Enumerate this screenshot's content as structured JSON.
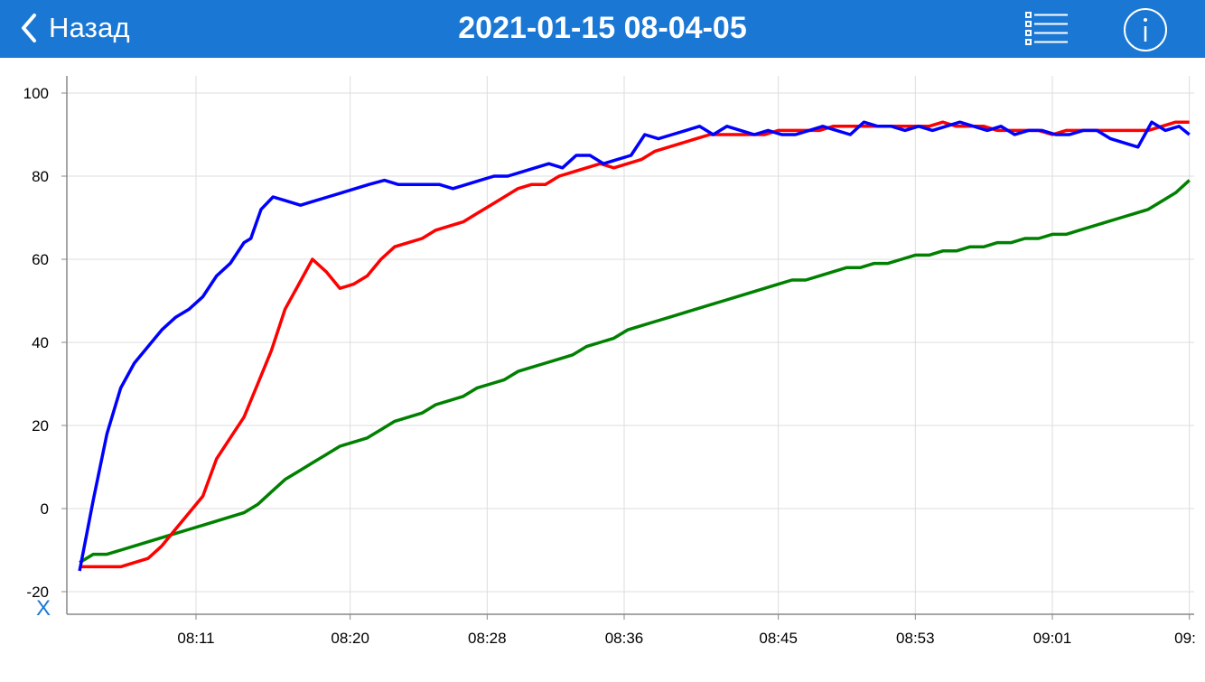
{
  "header": {
    "back_label": "Назад",
    "title": "2021-01-15 08-04-05",
    "back_icon": "chevron-left-icon",
    "list_icon": "list-icon",
    "info_icon": "info-icon",
    "bar_color": "#1a78d4"
  },
  "x_marker": "X",
  "chart_data": {
    "type": "line",
    "title": "",
    "xlabel": "",
    "ylabel": "",
    "x_ticks": [
      "08:11",
      "08:20",
      "08:28",
      "08:36",
      "08:45",
      "08:53",
      "09:01",
      "09:"
    ],
    "x_tick_minutes": [
      11,
      20,
      28,
      36,
      45,
      53,
      61,
      69
    ],
    "x_range_minutes": [
      4,
      69
    ],
    "ylim": [
      -20,
      100
    ],
    "y_ticks": [
      -20,
      0,
      20,
      40,
      60,
      80,
      100
    ],
    "grid": true,
    "legend": "none",
    "series": [
      {
        "color": "#0000ff",
        "x": [
          4.2,
          5.0,
          5.8,
          6.6,
          7.4,
          8.2,
          9.0,
          9.8,
          10.6,
          11.4,
          12.2,
          13.0,
          13.8,
          14.2,
          14.8,
          15.5,
          16.3,
          17.1,
          17.9,
          18.7,
          19.5,
          20.3,
          21.1,
          22.0,
          22.8,
          23.6,
          24.4,
          25.2,
          26.0,
          26.8,
          27.6,
          28.4,
          29.2,
          30.0,
          30.8,
          31.6,
          32.4,
          33.2,
          34.0,
          34.8,
          35.6,
          36.4,
          37.2,
          38.0,
          38.8,
          39.6,
          40.4,
          41.2,
          42.0,
          42.8,
          43.6,
          44.4,
          45.2,
          46.0,
          46.8,
          47.6,
          48.4,
          49.2,
          50.0,
          50.8,
          51.6,
          52.4,
          53.2,
          54.0,
          54.8,
          55.6,
          56.4,
          57.2,
          58.0,
          58.8,
          59.6,
          60.4,
          61.2,
          62.0,
          62.8,
          63.6,
          64.4,
          65.2,
          66.0,
          66.8,
          67.6,
          68.4,
          69.0
        ],
        "y": [
          -15,
          2,
          18,
          29,
          35,
          39,
          43,
          46,
          48,
          51,
          56,
          59,
          64,
          65,
          72,
          75,
          74,
          73,
          74,
          75,
          76,
          77,
          78,
          79,
          78,
          78,
          78,
          78,
          77,
          78,
          79,
          80,
          80,
          81,
          82,
          83,
          82,
          85,
          85,
          83,
          84,
          85,
          90,
          89,
          90,
          91,
          92,
          90,
          92,
          91,
          90,
          91,
          90,
          90,
          91,
          92,
          91,
          90,
          93,
          92,
          92,
          91,
          92,
          91,
          92,
          93,
          92,
          91,
          92,
          90,
          91,
          91,
          90,
          90,
          91,
          91,
          89,
          88,
          87,
          93,
          91,
          92,
          90
        ]
      },
      {
        "color": "#ff0000",
        "x": [
          4.2,
          5.0,
          5.8,
          6.6,
          7.4,
          8.2,
          9.0,
          9.8,
          10.6,
          11.4,
          12.2,
          13.0,
          13.8,
          14.6,
          15.4,
          16.2,
          17.0,
          17.8,
          18.6,
          19.4,
          20.2,
          21.0,
          21.8,
          22.6,
          23.4,
          24.2,
          25.0,
          25.8,
          26.6,
          27.4,
          28.2,
          29.0,
          29.8,
          30.6,
          31.4,
          32.2,
          33.0,
          33.8,
          34.6,
          35.4,
          36.2,
          37.0,
          37.8,
          38.6,
          39.4,
          40.2,
          41.0,
          41.8,
          42.6,
          43.4,
          44.2,
          45.0,
          45.8,
          46.6,
          47.4,
          48.2,
          49.0,
          49.8,
          50.6,
          51.4,
          52.2,
          53.0,
          53.8,
          54.6,
          55.4,
          56.2,
          57.0,
          57.8,
          58.6,
          59.4,
          60.2,
          61.0,
          61.8,
          62.6,
          63.4,
          64.2,
          65.0,
          65.8,
          66.6,
          67.4,
          68.2,
          69.0
        ],
        "y": [
          -14,
          -14,
          -14,
          -14,
          -13,
          -12,
          -9,
          -5,
          -1,
          3,
          12,
          17,
          22,
          30,
          38,
          48,
          54,
          60,
          57,
          53,
          54,
          56,
          60,
          63,
          64,
          65,
          67,
          68,
          69,
          71,
          73,
          75,
          77,
          78,
          78,
          80,
          81,
          82,
          83,
          82,
          83,
          84,
          86,
          87,
          88,
          89,
          90,
          90,
          90,
          90,
          90,
          91,
          91,
          91,
          91,
          92,
          92,
          92,
          92,
          92,
          92,
          92,
          92,
          93,
          92,
          92,
          92,
          91,
          91,
          91,
          91,
          90,
          91,
          91,
          91,
          91,
          91,
          91,
          91,
          92,
          93,
          93
        ]
      },
      {
        "color": "#008000",
        "x": [
          4.2,
          5.0,
          5.8,
          6.6,
          7.4,
          8.2,
          9.0,
          9.8,
          10.6,
          11.4,
          12.2,
          13.0,
          13.8,
          14.6,
          15.4,
          16.2,
          17.0,
          17.8,
          18.6,
          19.4,
          20.2,
          21.0,
          21.8,
          22.6,
          23.4,
          24.2,
          25.0,
          25.8,
          26.6,
          27.4,
          28.2,
          29.0,
          29.8,
          30.6,
          31.4,
          32.2,
          33.0,
          33.8,
          34.6,
          35.4,
          36.2,
          37.0,
          37.8,
          38.6,
          39.4,
          40.2,
          41.0,
          41.8,
          42.6,
          43.4,
          44.2,
          45.0,
          45.8,
          46.6,
          47.4,
          48.2,
          49.0,
          49.8,
          50.6,
          51.4,
          52.2,
          53.0,
          53.8,
          54.6,
          55.4,
          56.2,
          57.0,
          57.8,
          58.6,
          59.4,
          60.2,
          61.0,
          61.8,
          62.6,
          63.4,
          64.2,
          65.0,
          65.8,
          66.6,
          67.4,
          68.2,
          69.0
        ],
        "y": [
          -13,
          -11,
          -11,
          -10,
          -9,
          -8,
          -7,
          -6,
          -5,
          -4,
          -3,
          -2,
          -1,
          1,
          4,
          7,
          9,
          11,
          13,
          15,
          16,
          17,
          19,
          21,
          22,
          23,
          25,
          26,
          27,
          29,
          30,
          31,
          33,
          34,
          35,
          36,
          37,
          39,
          40,
          41,
          43,
          44,
          45,
          46,
          47,
          48,
          49,
          50,
          51,
          52,
          53,
          54,
          55,
          55,
          56,
          57,
          58,
          58,
          59,
          59,
          60,
          61,
          61,
          62,
          62,
          63,
          63,
          64,
          64,
          65,
          65,
          66,
          66,
          67,
          68,
          69,
          70,
          71,
          72,
          74,
          76,
          79
        ]
      }
    ]
  }
}
